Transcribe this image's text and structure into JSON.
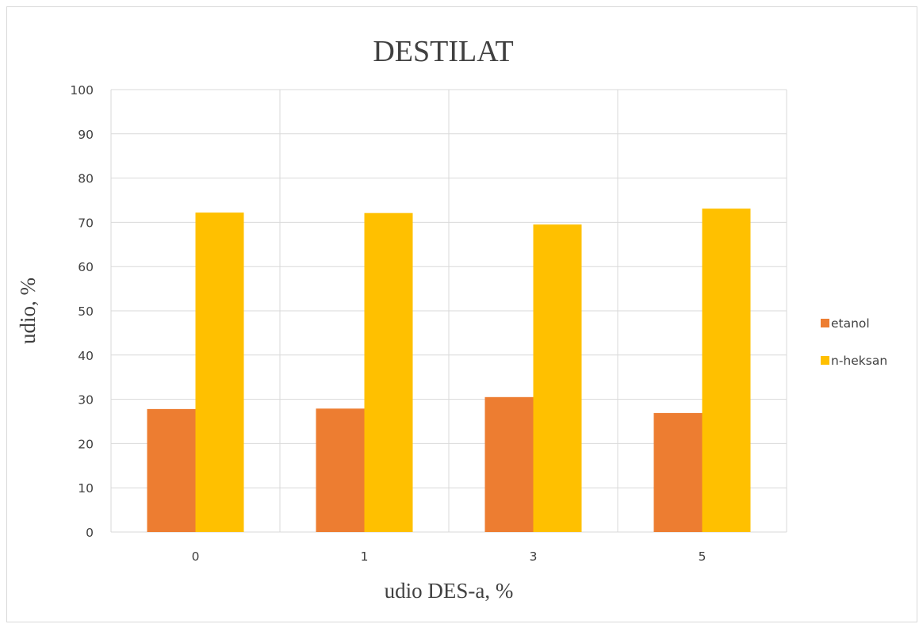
{
  "chart_data": {
    "type": "bar",
    "title": "DESTILAT",
    "xlabel": "udio DES-a, %",
    "ylabel": "udio, %",
    "categories": [
      "0",
      "1",
      "3",
      "5"
    ],
    "series": [
      {
        "name": "etanol",
        "color": "#ED7D31",
        "values": [
          27.8,
          27.9,
          30.5,
          26.9
        ]
      },
      {
        "name": "n-heksan",
        "color": "#FFC000",
        "values": [
          72.2,
          72.1,
          69.5,
          73.1
        ]
      }
    ],
    "ylim": [
      0,
      100
    ],
    "yticks": [
      0,
      10,
      20,
      30,
      40,
      50,
      60,
      70,
      80,
      90,
      100
    ],
    "grid": true,
    "legend": "right"
  }
}
